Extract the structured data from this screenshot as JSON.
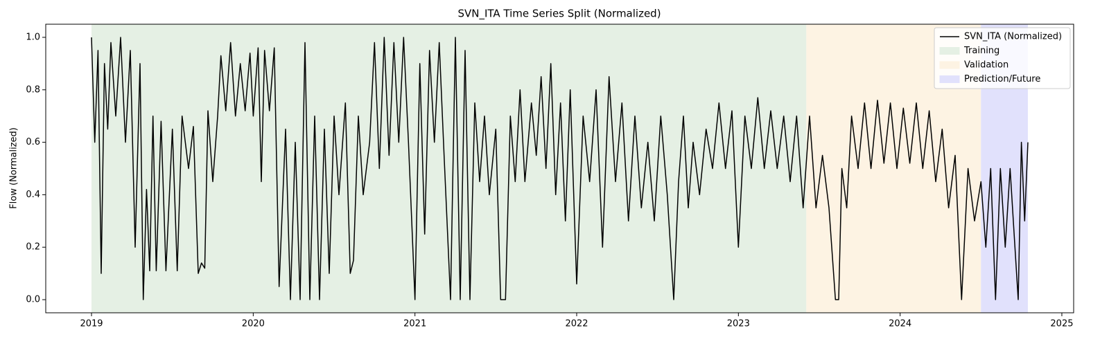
{
  "chart_data": {
    "type": "line",
    "title": "SVN_ITA Time Series Split (Normalized)",
    "y_label": "Flow (Normalized)",
    "xlim": [
      2018.717,
      2025.073
    ],
    "xticks": [
      2019,
      2020,
      2021,
      2022,
      2023,
      2024,
      2025
    ],
    "ylim": [
      -0.05,
      1.05
    ],
    "yticks": [
      {
        "value": 0,
        "label": "0.0"
      },
      0.2,
      0.4,
      0.6,
      0.8,
      {
        "value": 1,
        "label": "1.0"
      }
    ],
    "grid": false,
    "legend": "upper right",
    "x": [
      2019.0,
      2019.02,
      2019.04,
      2019.06,
      2019.08,
      2019.1,
      2019.12,
      2019.15,
      2019.18,
      2019.21,
      2019.24,
      2019.27,
      2019.3,
      2019.32,
      2019.34,
      2019.36,
      2019.38,
      2019.4,
      2019.43,
      2019.46,
      2019.5,
      2019.53,
      2019.56,
      2019.6,
      2019.63,
      2019.66,
      2019.68,
      2019.7,
      2019.72,
      2019.75,
      2019.78,
      2019.8,
      2019.83,
      2019.86,
      2019.89,
      2019.92,
      2019.95,
      2019.98,
      2020.0,
      2020.03,
      2020.05,
      2020.07,
      2020.1,
      2020.13,
      2020.16,
      2020.2,
      2020.23,
      2020.26,
      2020.29,
      2020.32,
      2020.35,
      2020.38,
      2020.41,
      2020.44,
      2020.47,
      2020.5,
      2020.53,
      2020.57,
      2020.6,
      2020.62,
      2020.65,
      2020.68,
      2020.72,
      2020.75,
      2020.78,
      2020.81,
      2020.84,
      2020.87,
      2020.9,
      2020.93,
      2020.96,
      2021.0,
      2021.03,
      2021.06,
      2021.09,
      2021.12,
      2021.15,
      2021.18,
      2021.22,
      2021.25,
      2021.28,
      2021.31,
      2021.34,
      2021.37,
      2021.4,
      2021.43,
      2021.46,
      2021.5,
      2021.53,
      2021.56,
      2021.59,
      2021.62,
      2021.65,
      2021.68,
      2021.72,
      2021.75,
      2021.78,
      2021.81,
      2021.84,
      2021.87,
      2021.9,
      2021.93,
      2021.96,
      2022.0,
      2022.04,
      2022.08,
      2022.12,
      2022.16,
      2022.2,
      2022.24,
      2022.28,
      2022.32,
      2022.36,
      2022.4,
      2022.44,
      2022.48,
      2022.52,
      2022.56,
      2022.6,
      2022.63,
      2022.66,
      2022.69,
      2022.72,
      2022.76,
      2022.8,
      2022.84,
      2022.88,
      2022.92,
      2022.96,
      2023.0,
      2023.04,
      2023.08,
      2023.12,
      2023.16,
      2023.2,
      2023.24,
      2023.28,
      2023.32,
      2023.36,
      2023.4,
      2023.44,
      2023.48,
      2023.52,
      2023.56,
      2023.6,
      2023.62,
      2023.64,
      2023.67,
      2023.7,
      2023.74,
      2023.78,
      2023.82,
      2023.86,
      2023.9,
      2023.94,
      2023.98,
      2024.02,
      2024.06,
      2024.1,
      2024.14,
      2024.18,
      2024.22,
      2024.26,
      2024.3,
      2024.34,
      2024.38,
      2024.42,
      2024.46,
      2024.5,
      2024.53,
      2024.56,
      2024.59,
      2024.62,
      2024.65,
      2024.68,
      2024.71,
      2024.73,
      2024.75,
      2024.77,
      2024.79
    ],
    "series": [
      {
        "name": "SVN_ITA (Normalized)",
        "color": "#000000",
        "values": [
          1.0,
          0.6,
          0.95,
          0.1,
          0.9,
          0.65,
          0.98,
          0.7,
          1.0,
          0.6,
          0.95,
          0.2,
          0.9,
          0.0,
          0.42,
          0.11,
          0.7,
          0.11,
          0.68,
          0.11,
          0.65,
          0.11,
          0.7,
          0.5,
          0.66,
          0.1,
          0.14,
          0.12,
          0.72,
          0.45,
          0.7,
          0.93,
          0.72,
          0.98,
          0.7,
          0.9,
          0.72,
          0.94,
          0.7,
          0.96,
          0.45,
          0.95,
          0.72,
          0.96,
          0.05,
          0.65,
          0.0,
          0.6,
          0.0,
          0.98,
          0.0,
          0.7,
          0.0,
          0.65,
          0.1,
          0.7,
          0.4,
          0.75,
          0.1,
          0.15,
          0.7,
          0.4,
          0.6,
          0.98,
          0.5,
          1.0,
          0.55,
          0.98,
          0.6,
          1.0,
          0.6,
          0.0,
          0.9,
          0.25,
          0.95,
          0.6,
          0.98,
          0.55,
          0.0,
          1.0,
          0.0,
          0.95,
          0.0,
          0.75,
          0.45,
          0.7,
          0.4,
          0.65,
          0.0,
          0.0,
          0.7,
          0.45,
          0.8,
          0.45,
          0.75,
          0.55,
          0.85,
          0.5,
          0.9,
          0.4,
          0.75,
          0.3,
          0.8,
          0.06,
          0.7,
          0.45,
          0.8,
          0.2,
          0.85,
          0.45,
          0.75,
          0.3,
          0.7,
          0.35,
          0.6,
          0.3,
          0.7,
          0.4,
          0.0,
          0.45,
          0.7,
          0.35,
          0.6,
          0.4,
          0.65,
          0.5,
          0.75,
          0.5,
          0.72,
          0.2,
          0.7,
          0.5,
          0.77,
          0.5,
          0.72,
          0.5,
          0.7,
          0.45,
          0.7,
          0.35,
          0.7,
          0.35,
          0.55,
          0.35,
          0.0,
          0.0,
          0.5,
          0.35,
          0.7,
          0.5,
          0.75,
          0.5,
          0.76,
          0.52,
          0.75,
          0.5,
          0.73,
          0.52,
          0.75,
          0.5,
          0.72,
          0.45,
          0.65,
          0.35,
          0.55,
          0.0,
          0.5,
          0.3,
          0.45,
          0.2,
          0.5,
          0.0,
          0.5,
          0.2,
          0.5,
          0.2,
          0.0,
          0.6,
          0.3,
          0.6
        ]
      }
    ],
    "spans": [
      {
        "name": "Training",
        "color": "#e5f0e4",
        "start": 2019.0,
        "end": 2023.42
      },
      {
        "name": "Validation",
        "color": "#fdf3e3",
        "start": 2023.42,
        "end": 2024.5
      },
      {
        "name": "Prediction/Future",
        "color": "#e1e1fc",
        "start": 2024.5,
        "end": 2024.79
      }
    ]
  }
}
